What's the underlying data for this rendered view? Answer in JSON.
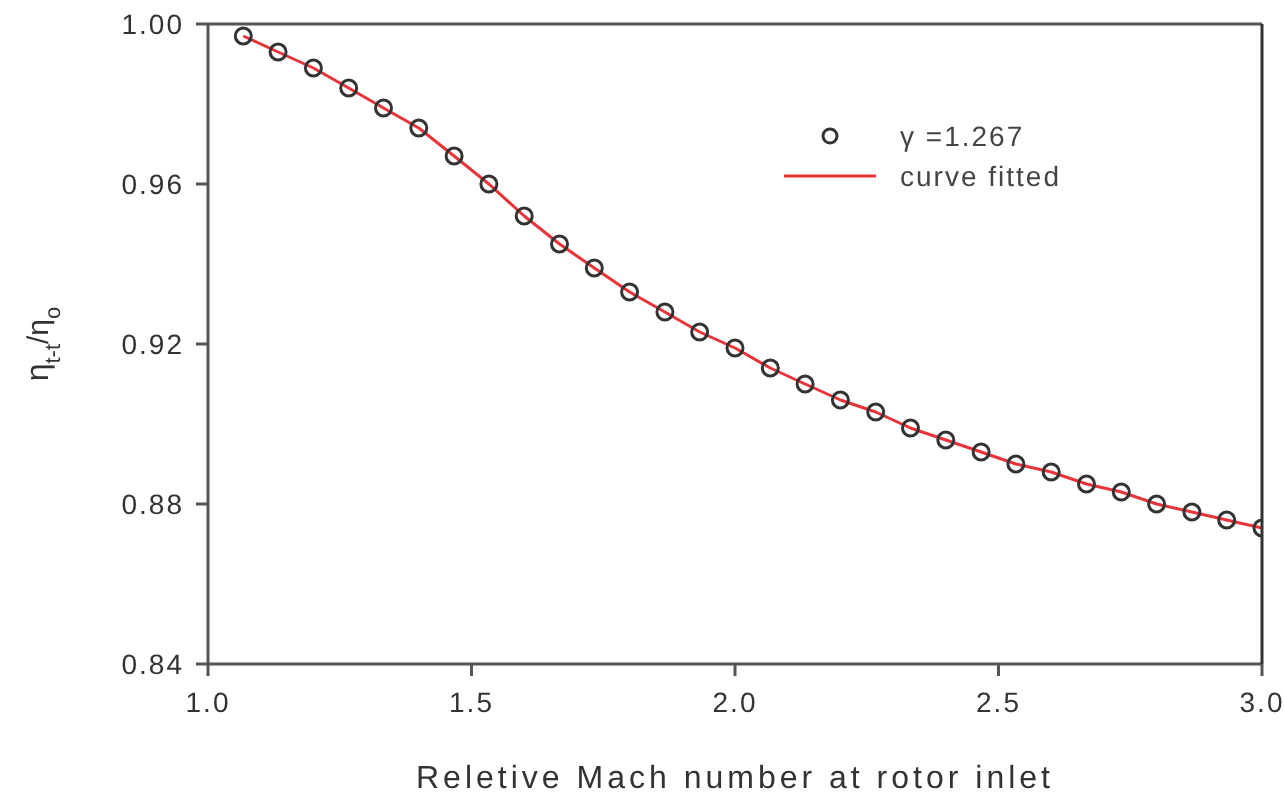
{
  "chart_data": {
    "type": "scatter",
    "xlabel": "Reletive Mach number at rotor inlet",
    "ylabel": "η$_{t-t}$/η$_{o}$",
    "xlim": [
      1.0,
      3.0
    ],
    "xticks": [
      {
        "value": 1.0,
        "label": "1.0"
      },
      {
        "value": 1.5,
        "label": "1.5"
      },
      {
        "value": 2.0,
        "label": "2.0"
      },
      {
        "value": 2.5,
        "label": "2.5"
      },
      {
        "value": 3.0,
        "label": "3.0"
      }
    ],
    "ylim": [
      0.84,
      1.0
    ],
    "yticks": [
      {
        "value": 0.84,
        "label": "0.84"
      },
      {
        "value": 0.88,
        "label": "0.88"
      },
      {
        "value": 0.92,
        "label": "0.92"
      },
      {
        "value": 0.96,
        "label": "0.96"
      },
      {
        "value": 1.0,
        "label": "1.00"
      }
    ],
    "legend": "top right",
    "x": [
      1.067,
      1.133,
      1.2,
      1.267,
      1.333,
      1.4,
      1.467,
      1.533,
      1.6,
      1.667,
      1.733,
      1.8,
      1.867,
      1.933,
      2.0,
      2.067,
      2.133,
      2.2,
      2.267,
      2.333,
      2.4,
      2.467,
      2.533,
      2.6,
      2.667,
      2.733,
      2.8,
      2.867,
      2.933,
      3.0
    ],
    "series": [
      {
        "name": "γ =1.267",
        "marker": "circle",
        "color": "#333333",
        "values": [
          0.997,
          0.993,
          0.989,
          0.984,
          0.979,
          0.974,
          0.967,
          0.96,
          0.952,
          0.945,
          0.939,
          0.933,
          0.928,
          0.923,
          0.919,
          0.914,
          0.91,
          0.906,
          0.903,
          0.899,
          0.896,
          0.893,
          0.89,
          0.888,
          0.885,
          0.883,
          0.88,
          0.878,
          0.876,
          0.874
        ]
      },
      {
        "name": "curve fitted",
        "type": "line",
        "marker": "none",
        "line_style": "solid",
        "color": "#e8333a",
        "values": [
          0.997,
          0.993,
          0.989,
          0.984,
          0.979,
          0.974,
          0.967,
          0.96,
          0.952,
          0.945,
          0.939,
          0.933,
          0.928,
          0.923,
          0.919,
          0.914,
          0.91,
          0.906,
          0.903,
          0.899,
          0.896,
          0.893,
          0.89,
          0.888,
          0.885,
          0.883,
          0.88,
          0.878,
          0.876,
          0.874
        ]
      }
    ]
  }
}
